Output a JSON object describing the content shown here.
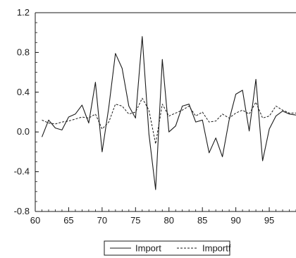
{
  "chart_data": {
    "type": "line",
    "title": "",
    "xlabel": "",
    "ylabel": "",
    "xlim": [
      60,
      99
    ],
    "ylim": [
      -0.8,
      1.2
    ],
    "x_ticks": [
      60,
      65,
      70,
      75,
      80,
      85,
      90,
      95
    ],
    "y_ticks": [
      -0.8,
      -0.4,
      0.0,
      0.4,
      0.8,
      1.2
    ],
    "y_tick_labels": [
      "-0.8",
      "-0.4",
      "0.0",
      "0.4",
      "0.8",
      "1.2"
    ],
    "x_tick_labels": [
      "60",
      "65",
      "70",
      "75",
      "80",
      "85",
      "90",
      "95"
    ],
    "grid": false,
    "legend_placement": "bottom-center",
    "series": [
      {
        "name": "Import",
        "style": "solid",
        "color": "#1a1a1a",
        "x": [
          61,
          62,
          63,
          64,
          65,
          66,
          67,
          68,
          69,
          70,
          71,
          72,
          73,
          74,
          75,
          76,
          77,
          78,
          79,
          80,
          81,
          82,
          83,
          84,
          85,
          86,
          87,
          88,
          89,
          90,
          91,
          92,
          93,
          94,
          95,
          96,
          97,
          98,
          99
        ],
        "values": [
          -0.05,
          0.12,
          0.04,
          0.02,
          0.15,
          0.18,
          0.27,
          0.09,
          0.5,
          -0.2,
          0.25,
          0.79,
          0.64,
          0.26,
          0.14,
          0.96,
          -0.02,
          -0.58,
          0.73,
          0.0,
          0.06,
          0.26,
          0.28,
          0.1,
          0.12,
          -0.21,
          -0.06,
          -0.25,
          0.12,
          0.38,
          0.42,
          0.01,
          0.53,
          -0.29,
          0.03,
          0.16,
          0.21,
          0.18,
          0.17
        ]
      },
      {
        "name": "Importf",
        "style": "dashed",
        "color": "#1a1a1a",
        "x": [
          61,
          62,
          63,
          64,
          65,
          66,
          67,
          68,
          69,
          70,
          71,
          72,
          73,
          74,
          75,
          76,
          77,
          78,
          79,
          80,
          81,
          82,
          83,
          84,
          85,
          86,
          87,
          88,
          89,
          90,
          91,
          92,
          93,
          94,
          95,
          96,
          97,
          98,
          99
        ],
        "values": [
          0.12,
          0.09,
          0.08,
          0.1,
          0.11,
          0.13,
          0.15,
          0.14,
          0.18,
          0.03,
          0.1,
          0.28,
          0.26,
          0.18,
          0.2,
          0.34,
          0.22,
          -0.12,
          0.28,
          0.16,
          0.19,
          0.22,
          0.26,
          0.16,
          0.2,
          0.1,
          0.11,
          0.18,
          0.14,
          0.19,
          0.22,
          0.18,
          0.3,
          0.14,
          0.16,
          0.26,
          0.22,
          0.19,
          0.19
        ]
      }
    ]
  }
}
